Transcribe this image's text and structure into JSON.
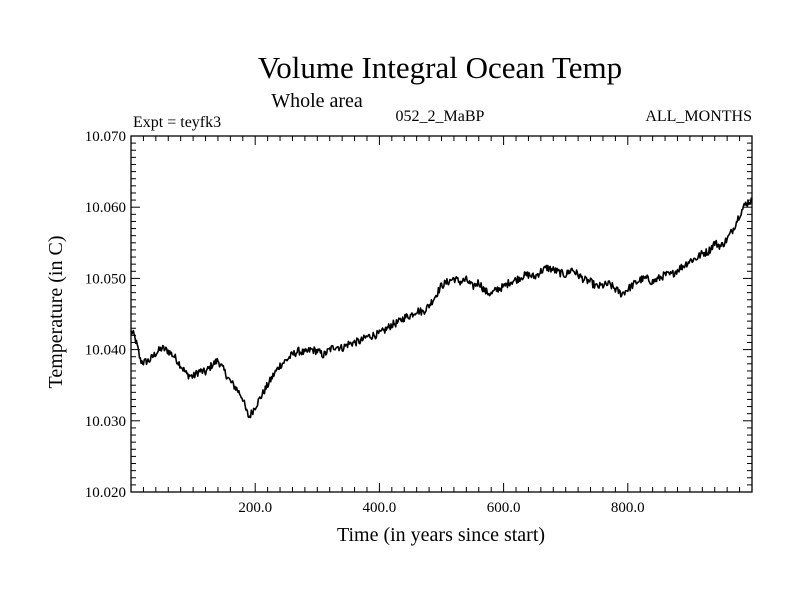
{
  "chart_data": {
    "type": "line",
    "title": "Volume Integral Ocean Temp",
    "subtitle": "Whole area",
    "experiment_label": "Expt = teyfk3",
    "run_label": "052_2_MaBP",
    "months_label": "ALL_MONTHS",
    "xlabel": "Time (in years since start)",
    "ylabel": "Temperature (in C)",
    "xlim": [
      0,
      1000
    ],
    "ylim": [
      10.02,
      10.07
    ],
    "x_ticks": [
      200,
      400,
      600,
      800
    ],
    "x_tick_labels": [
      "200.0",
      "400.0",
      "600.0",
      "800.0"
    ],
    "y_ticks": [
      10.02,
      10.03,
      10.04,
      10.05,
      10.06,
      10.07
    ],
    "y_tick_labels": [
      "10.020",
      "10.030",
      "10.040",
      "10.050",
      "10.060",
      "10.070"
    ],
    "grid": false,
    "series": [
      {
        "name": "teyfk3",
        "x": [
          0,
          5,
          10,
          15,
          20,
          30,
          40,
          50,
          60,
          70,
          80,
          90,
          100,
          110,
          120,
          130,
          140,
          150,
          160,
          170,
          180,
          185,
          190,
          200,
          210,
          220,
          230,
          240,
          250,
          260,
          270,
          280,
          290,
          300,
          310,
          320,
          330,
          340,
          350,
          360,
          370,
          380,
          390,
          400,
          410,
          420,
          430,
          440,
          450,
          460,
          470,
          480,
          490,
          500,
          510,
          520,
          530,
          540,
          550,
          560,
          570,
          580,
          590,
          600,
          610,
          620,
          630,
          640,
          650,
          660,
          670,
          680,
          690,
          700,
          710,
          720,
          730,
          740,
          750,
          760,
          770,
          780,
          790,
          800,
          810,
          820,
          830,
          840,
          850,
          860,
          870,
          880,
          890,
          900,
          910,
          920,
          930,
          940,
          950,
          960,
          970,
          980,
          990,
          1000
        ],
        "values": [
          10.0425,
          10.042,
          10.0405,
          10.0385,
          10.0382,
          10.0385,
          10.0395,
          10.0402,
          10.0398,
          10.039,
          10.0378,
          10.0365,
          10.0362,
          10.037,
          10.0368,
          10.0378,
          10.0385,
          10.037,
          10.0355,
          10.0345,
          10.0332,
          10.0315,
          10.0305,
          10.032,
          10.0335,
          10.035,
          10.0365,
          10.0378,
          10.0385,
          10.0393,
          10.0398,
          10.0395,
          10.04,
          10.0398,
          10.0392,
          10.04,
          10.0405,
          10.0402,
          10.0408,
          10.041,
          10.0412,
          10.0418,
          10.042,
          10.0422,
          10.0428,
          10.0435,
          10.0438,
          10.0445,
          10.0448,
          10.0455,
          10.0453,
          10.0462,
          10.0475,
          10.049,
          10.0495,
          10.05,
          10.0495,
          10.0498,
          10.0488,
          10.0495,
          10.0482,
          10.0478,
          10.0485,
          10.0488,
          10.0495,
          10.0498,
          10.0503,
          10.0505,
          10.0502,
          10.051,
          10.0515,
          10.0512,
          10.0508,
          10.0505,
          10.0513,
          10.0505,
          10.0498,
          10.0495,
          10.0488,
          10.049,
          10.0492,
          10.0485,
          10.0478,
          10.0485,
          10.0492,
          10.0498,
          10.05,
          10.0495,
          10.05,
          10.0505,
          10.0505,
          10.0512,
          10.0518,
          10.0525,
          10.0528,
          10.0535,
          10.0538,
          10.055,
          10.0545,
          10.0555,
          10.057,
          10.059,
          10.0605,
          10.061
        ]
      }
    ]
  }
}
